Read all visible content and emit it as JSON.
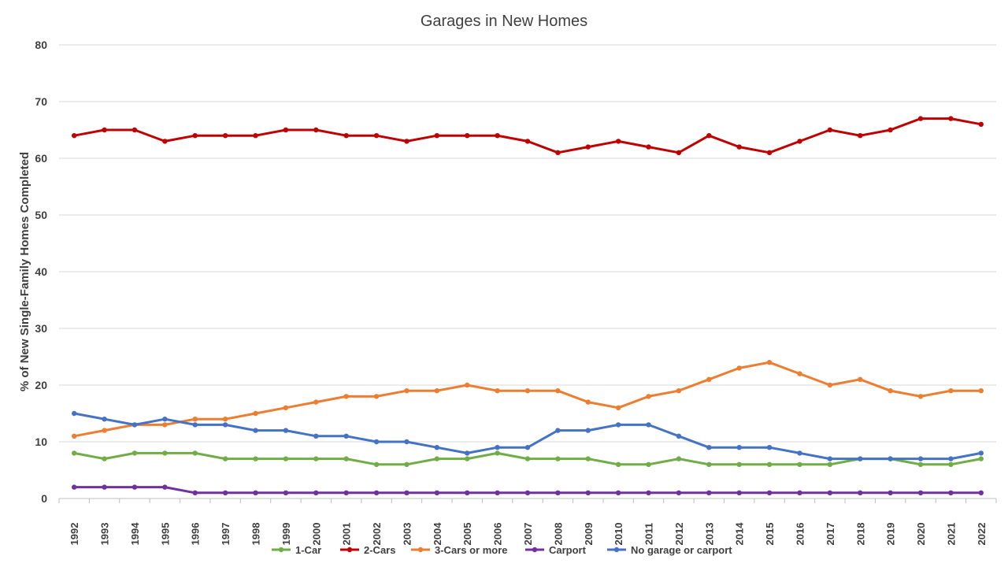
{
  "chart_data": {
    "type": "line",
    "title": "Garages in New Homes",
    "xlabel": "",
    "ylabel": "% of New Single-Family Homes Completed",
    "ylim": [
      0,
      80
    ],
    "yticks": [
      0,
      10,
      20,
      30,
      40,
      50,
      60,
      70,
      80
    ],
    "grid": true,
    "legend_position": "bottom",
    "categories": [
      "1992",
      "1993",
      "1994",
      "1995",
      "1996",
      "1997",
      "1998",
      "1999",
      "2000",
      "2001",
      "2002",
      "2003",
      "2004",
      "2005",
      "2006",
      "2007",
      "2008",
      "2009",
      "2010",
      "2011",
      "2012",
      "2013",
      "2014",
      "2015",
      "2016",
      "2017",
      "2018",
      "2019",
      "2020",
      "2021",
      "2022"
    ],
    "series": [
      {
        "name": "1-Car",
        "color": "#70ad47",
        "values": [
          8,
          7,
          8,
          8,
          8,
          7,
          7,
          7,
          7,
          7,
          6,
          6,
          7,
          7,
          8,
          7,
          7,
          7,
          6,
          6,
          7,
          6,
          6,
          6,
          6,
          6,
          7,
          7,
          6,
          6,
          7
        ]
      },
      {
        "name": "2-Cars",
        "color": "#c00000",
        "values": [
          64,
          65,
          65,
          63,
          64,
          64,
          64,
          65,
          65,
          64,
          64,
          63,
          64,
          64,
          64,
          63,
          61,
          62,
          63,
          62,
          61,
          64,
          62,
          61,
          63,
          65,
          64,
          65,
          67,
          67,
          66
        ]
      },
      {
        "name": "3-Cars or more",
        "color": "#ed7d31",
        "values": [
          11,
          12,
          13,
          13,
          14,
          14,
          15,
          16,
          17,
          18,
          18,
          19,
          19,
          20,
          19,
          19,
          19,
          17,
          16,
          18,
          19,
          21,
          23,
          24,
          22,
          20,
          21,
          19,
          18,
          19,
          19
        ]
      },
      {
        "name": "Carport",
        "color": "#7030a0",
        "values": [
          2,
          2,
          2,
          2,
          1,
          1,
          1,
          1,
          1,
          1,
          1,
          1,
          1,
          1,
          1,
          1,
          1,
          1,
          1,
          1,
          1,
          1,
          1,
          1,
          1,
          1,
          1,
          1,
          1,
          1,
          1
        ]
      },
      {
        "name": "No garage or carport",
        "color": "#4472c4",
        "values": [
          15,
          14,
          13,
          14,
          13,
          13,
          12,
          12,
          11,
          11,
          10,
          10,
          9,
          8,
          9,
          9,
          12,
          12,
          13,
          13,
          11,
          9,
          9,
          9,
          8,
          7,
          7,
          7,
          7,
          7,
          8
        ]
      }
    ]
  }
}
